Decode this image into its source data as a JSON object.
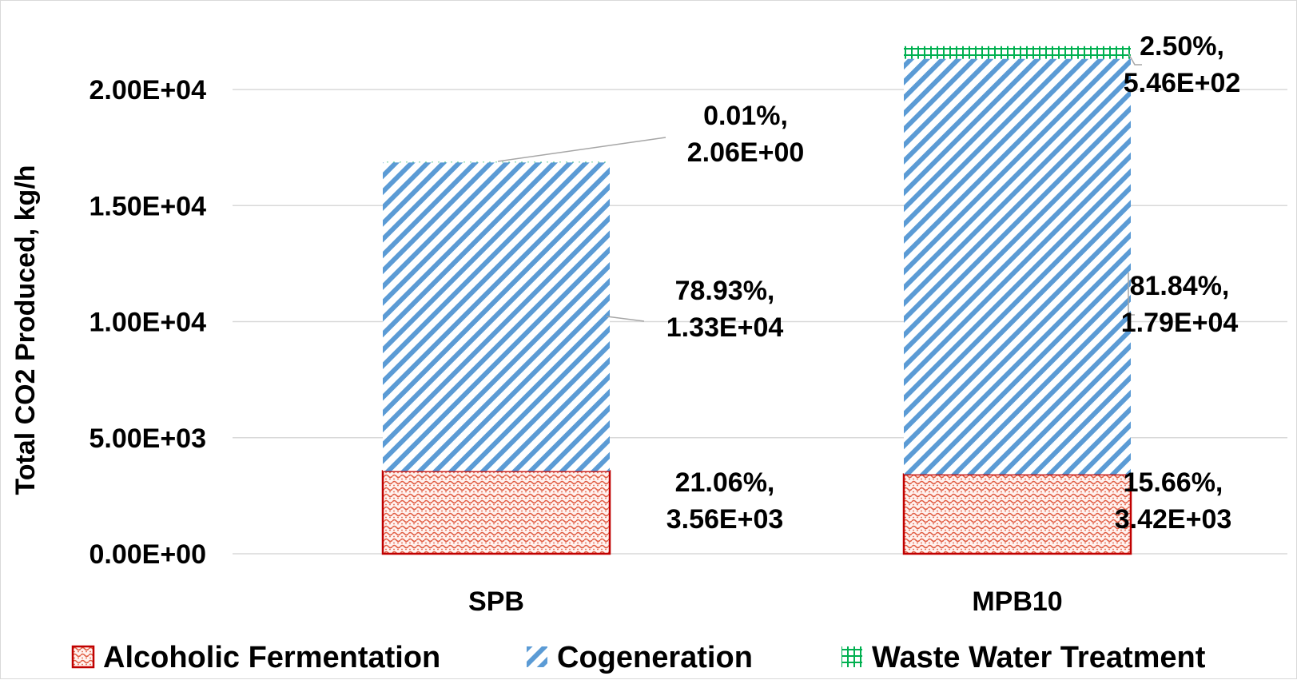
{
  "chart_data": {
    "type": "bar",
    "stacked": true,
    "categories": [
      "SPB",
      "MPB10"
    ],
    "series": [
      {
        "name": "Alcoholic Fermentation",
        "values": [
          3560,
          3420
        ],
        "color": "#e05a40",
        "border": "#c00000",
        "pattern": "dots"
      },
      {
        "name": "Cogeneration",
        "values": [
          13300,
          17900
        ],
        "color": "#5b9bd5",
        "pattern": "diagonal"
      },
      {
        "name": "Waste Water Treatment",
        "values": [
          2.06,
          546
        ],
        "color": "#00b050",
        "pattern": "grid"
      }
    ],
    "data_labels": [
      [
        [
          "21.06%,",
          "3.56E+03"
        ],
        [
          "15.66%,",
          "3.42E+03"
        ]
      ],
      [
        [
          "78.93%,",
          "1.33E+04"
        ],
        [
          "81.84%,",
          "1.79E+04"
        ]
      ],
      [
        [
          "0.01%,",
          "2.06E+00"
        ],
        [
          "2.50%,",
          "5.46E+02"
        ]
      ]
    ],
    "yticks": [
      0,
      5000,
      10000,
      15000,
      20000
    ],
    "ytick_labels": [
      "0.00E+00",
      "5.00E+03",
      "1.00E+04",
      "1.50E+04",
      "2.00E+04"
    ],
    "ylim": [
      0,
      22000
    ],
    "ylabel": "Total CO2 Produced, kg/h",
    "xlabel": "",
    "title": "",
    "grid": true,
    "legend": "bottom"
  }
}
